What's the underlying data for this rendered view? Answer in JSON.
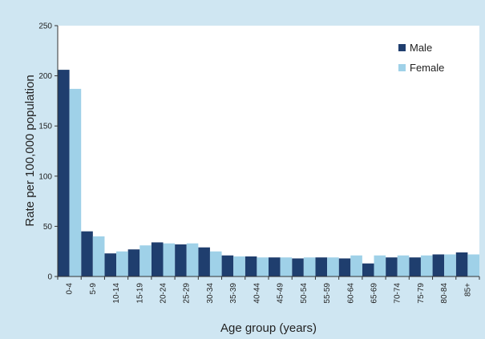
{
  "chart_data": {
    "type": "bar",
    "title": "",
    "xlabel": "Age group (years)",
    "ylabel": "Rate per 100,000 population",
    "ylim": [
      0,
      250
    ],
    "yticks": [
      0,
      50,
      100,
      150,
      200,
      250
    ],
    "grid": false,
    "legend_position": "top-right",
    "categories": [
      "0-4",
      "5-9",
      "10-14",
      "15-19",
      "20-24",
      "25-29",
      "30-34",
      "35-39",
      "40-44",
      "45-49",
      "50-54",
      "55-59",
      "60-64",
      "65-69",
      "70-74",
      "75-79",
      "80-84",
      "85+"
    ],
    "series": [
      {
        "name": "Male",
        "color": "#1f3e6e",
        "values": [
          206,
          45,
          23,
          27,
          34,
          32,
          29,
          21,
          20,
          19,
          18,
          19,
          18,
          13,
          19,
          19,
          22,
          24
        ]
      },
      {
        "name": "Female",
        "color": "#9fd1e8",
        "values": [
          187,
          40,
          25,
          31,
          33,
          33,
          25,
          20,
          19,
          19,
          19,
          19,
          21,
          21,
          21,
          21,
          22,
          22
        ]
      }
    ]
  },
  "colors": {
    "background": "#cfe6f2",
    "plot_area": "#ffffff"
  }
}
